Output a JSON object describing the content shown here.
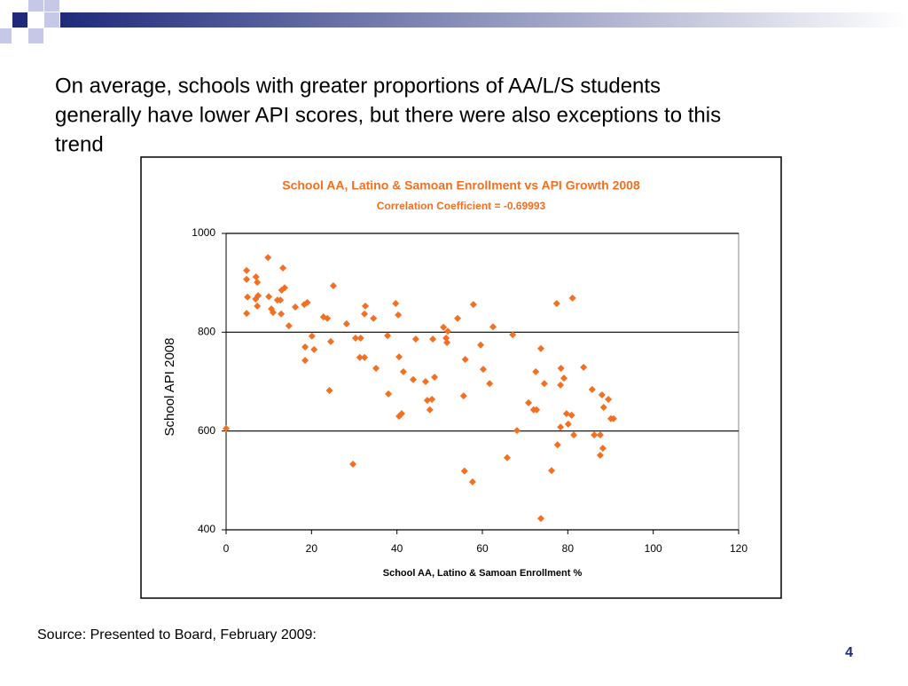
{
  "heading_lines": [
    "On average, schools with greater proportions of AA/L/S students",
    "generally have lower API scores, but there were also exceptions to this",
    "trend"
  ],
  "source": "Source:  Presented to Board, February 2009:",
  "page_number": "4",
  "chart_data": {
    "type": "scatter",
    "title": "School AA, Latino & Samoan Enrollment vs API Growth 2008",
    "subtitle": "Correlation Coefficient = -0.69993",
    "x_label": "School AA, Latino & Samoan Enrollment %",
    "y_label": "School API 2008",
    "xlim": [
      0,
      120
    ],
    "xticks": [
      0,
      20,
      40,
      60,
      80,
      100,
      120
    ],
    "ylim": [
      400,
      1000
    ],
    "yticks": [
      400,
      600,
      800,
      1000
    ],
    "grid": true,
    "color": "#f36f21",
    "x": [
      0,
      4.8,
      4.8,
      5,
      4.8,
      7,
      7.3,
      7.5,
      7.3,
      6.9,
      9.8,
      10,
      10.6,
      11,
      12,
      12.7,
      13,
      12.9,
      13.3,
      13.7,
      14.7,
      16.2,
      18.3,
      19,
      18.5,
      18.5,
      20.1,
      20.6,
      22.8,
      23.7,
      24.2,
      24.5,
      25.1,
      28.2,
      29.7,
      30.3,
      31.5,
      31.3,
      32.4,
      32.4,
      32.6,
      34.5,
      35.1,
      37.8,
      38,
      39.7,
      40.3,
      40.5,
      40.5,
      41.1,
      41.5,
      43.8,
      44.4,
      46.7,
      47.1,
      47.7,
      48.2,
      48.4,
      48.8,
      50.9,
      51.5,
      51.7,
      51.9,
      54.2,
      55.6,
      55.8,
      56,
      57.7,
      57.9,
      59.6,
      60.2,
      61.7,
      62.5,
      65.8,
      67.1,
      68.1,
      70.8,
      72,
      72.7,
      72.5,
      73.7,
      73.7,
      74.5,
      76.2,
      77.4,
      77.6,
      78.3,
      78.3,
      78.4,
      79.1,
      79.7,
      80.1,
      81.1,
      80.9,
      81.4,
      83.7,
      85.7,
      86.2,
      87.6,
      88,
      87.6,
      88.2,
      88.4,
      89.5,
      90.1,
      90.7
    ],
    "values": [
      605,
      925,
      907,
      871,
      838,
      912,
      901,
      874,
      853,
      867,
      951,
      872,
      847,
      840,
      865,
      865,
      885,
      837,
      930,
      890,
      813,
      851,
      856,
      860,
      770,
      743,
      792,
      765,
      831,
      828,
      682,
      781,
      894,
      817,
      533,
      788,
      788,
      749,
      749,
      837,
      853,
      828,
      727,
      793,
      675,
      858,
      835,
      750,
      630,
      635,
      720,
      704,
      786,
      700,
      662,
      643,
      664,
      786,
      709,
      810,
      788,
      779,
      802,
      828,
      671,
      519,
      745,
      497,
      856,
      774,
      725,
      696,
      811,
      546,
      795,
      601,
      657,
      643,
      643,
      720,
      767,
      423,
      696,
      520,
      858,
      572,
      693,
      608,
      727,
      707,
      635,
      614,
      869,
      632,
      592,
      729,
      684,
      592,
      592,
      673,
      551,
      565,
      648,
      664,
      625,
      625
    ]
  }
}
